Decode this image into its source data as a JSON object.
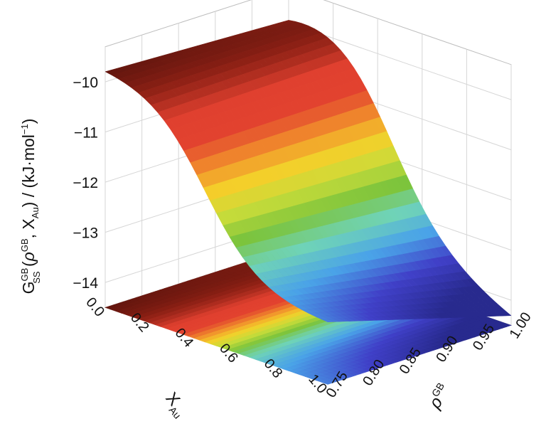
{
  "chart_data": {
    "type": "surface3d",
    "title": "",
    "zlabel": {
      "main": "G",
      "sup": "GB",
      "sub": "SS",
      "args_open": " (",
      "rho": "ρ",
      "rho_sup": "GB",
      "comma": ", ",
      "x": "X",
      "x_sub": "Au",
      "args_close": ")",
      "unit": " / (kJ·mol",
      "unit_sup": "−1",
      "unit_close": ")"
    },
    "xlabel": {
      "main": "X",
      "sub": "Au"
    },
    "ylabel": {
      "main": "ρ",
      "sup": "GB"
    },
    "x_ticks": [
      "0.0",
      "0.2",
      "0.4",
      "0.6",
      "0.8",
      "1.0"
    ],
    "y_ticks": [
      "0.75",
      "0.80",
      "0.85",
      "0.90",
      "0.95",
      "1.00"
    ],
    "z_ticks": [
      "−10",
      "−11",
      "−12",
      "−13",
      "−14"
    ],
    "xlim": [
      0,
      1
    ],
    "ylim": [
      0.75,
      1.0
    ],
    "zlim": [
      -14.5,
      -9.3
    ],
    "grid": true,
    "colormap": [
      "#3a0c08",
      "#8a1f14",
      "#e0402f",
      "#e2422f",
      "#f08a2c",
      "#f4cf2a",
      "#c8dc3a",
      "#7cc43c",
      "#6fd3b8",
      "#4aa3e8",
      "#4040c8",
      "#282a8e"
    ],
    "contour_projection": true,
    "surface_samples": {
      "x": [
        0.0,
        0.25,
        0.5,
        0.75,
        1.0
      ],
      "y_at_075": [
        -9.8,
        -11.0,
        -12.4,
        -13.0,
        -13.2
      ],
      "y_at_100": [
        -9.6,
        -10.4,
        -12.2,
        -13.6,
        -14.2
      ]
    }
  }
}
